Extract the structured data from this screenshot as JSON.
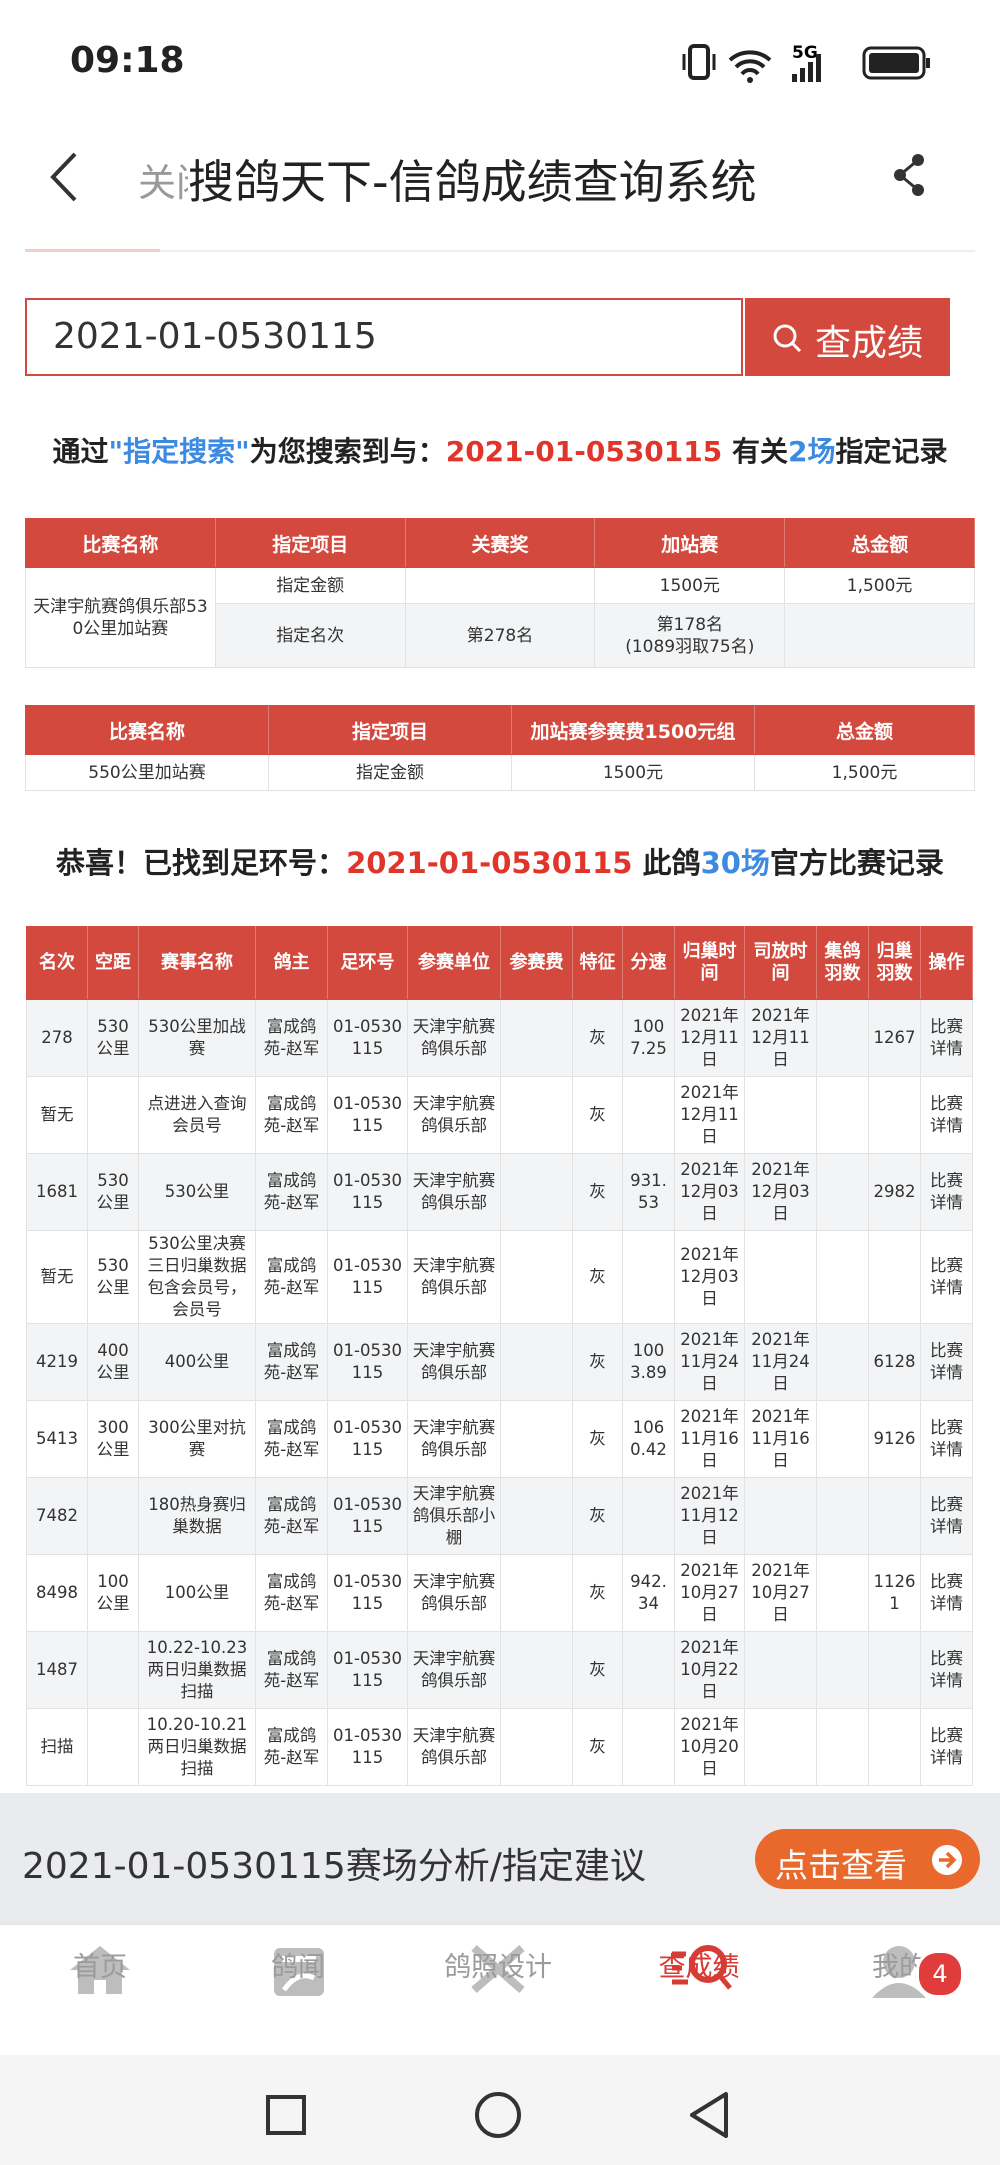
{
  "status": {
    "time": "09:18",
    "network": "5G"
  },
  "header": {
    "close": "关闭",
    "title": "搜鸽天下-信鸽成绩查询系统"
  },
  "search": {
    "value": "2021-01-0530115",
    "button": "查成绩"
  },
  "summary": {
    "prefix": "通过",
    "keyword": "\"指定搜索\"",
    "middle": "为您搜索到与：",
    "ring": "2021-01-0530115",
    "about": " 有关",
    "count": "2场",
    "suffix": "指定记录"
  },
  "table1": {
    "headers": [
      "比赛名称",
      "指定项目",
      "关赛奖",
      "加站赛",
      "总金额"
    ],
    "race": "天津宇航赛鸽俱乐部530公里加站赛",
    "rows": [
      [
        "指定金额",
        null,
        "1500元",
        "1,500元"
      ],
      [
        "指定名次",
        "第278名",
        "第178名\n(1089羽取75名)",
        null
      ]
    ]
  },
  "table2": {
    "headers": [
      "比赛名称",
      "指定项目",
      "加站赛参赛费1500元组",
      "总金额"
    ],
    "rows": [
      [
        "550公里加站赛",
        "指定金额",
        "1500元",
        "1,500元"
      ]
    ]
  },
  "found": {
    "prefix": "恭喜！已找到足环号：",
    "ring": "2021-01-0530115",
    "middle": " 此鸽",
    "count": "30场",
    "suffix": "官方比赛记录"
  },
  "table3": {
    "headers": [
      "名次",
      "空距",
      "赛事名称",
      "鸽主",
      "足环号",
      "参赛单位",
      "参赛费",
      "特征",
      "分速",
      "归巢时间",
      "司放时间",
      "集鸽羽数",
      "归巢羽数",
      "操作"
    ],
    "rows": [
      [
        "278",
        "530公里",
        "530公里加战赛",
        "富成鸽苑-赵军",
        "01-0530115",
        "天津宇航赛鸽俱乐部",
        null,
        "灰",
        "1007.25",
        "2021年12月11日",
        "2021年12月11日",
        null,
        "1267",
        "比赛详情"
      ],
      [
        "暂无",
        null,
        "点进进入查询会员号",
        "富成鸽苑-赵军",
        "01-0530115",
        "天津宇航赛鸽俱乐部",
        null,
        "灰",
        null,
        "2021年12月11日",
        null,
        null,
        null,
        "比赛详情"
      ],
      [
        "1681",
        "530公里",
        "530公里",
        "富成鸽苑-赵军",
        "01-0530115",
        "天津宇航赛鸽俱乐部",
        null,
        "灰",
        "931.53",
        "2021年12月03日",
        "2021年12月03日",
        null,
        "2982",
        "比赛详情"
      ],
      [
        "暂无",
        "530公里",
        "530公里决赛三日归巢数据包含会员号，会员号",
        "富成鸽苑-赵军",
        "01-0530115",
        "天津宇航赛鸽俱乐部",
        null,
        "灰",
        null,
        "2021年12月03日",
        null,
        null,
        null,
        "比赛详情"
      ],
      [
        "4219",
        "400公里",
        "400公里",
        "富成鸽苑-赵军",
        "01-0530115",
        "天津宇航赛鸽俱乐部",
        null,
        "灰",
        "1003.89",
        "2021年11月24日",
        "2021年11月24日",
        null,
        "6128",
        "比赛详情"
      ],
      [
        "5413",
        "300公里",
        "300公里对抗赛",
        "富成鸽苑-赵军",
        "01-0530115",
        "天津宇航赛鸽俱乐部",
        null,
        "灰",
        "1060.42",
        "2021年11月16日",
        "2021年11月16日",
        null,
        "9126",
        "比赛详情"
      ],
      [
        "7482",
        null,
        "180热身赛归巢数据",
        "富成鸽苑-赵军",
        "01-0530115",
        "天津宇航赛鸽俱乐部小棚",
        null,
        "灰",
        null,
        "2021年11月12日",
        null,
        null,
        null,
        "比赛详情"
      ],
      [
        "8498",
        "100公里",
        "100公里",
        "富成鸽苑-赵军",
        "01-0530115",
        "天津宇航赛鸽俱乐部",
        null,
        "灰",
        "942.34",
        "2021年10月27日",
        "2021年10月27日",
        null,
        "11261",
        "比赛详情"
      ],
      [
        "1487",
        null,
        "10.22-10.23两日归巢数据扫描",
        "富成鸽苑-赵军",
        "01-0530115",
        "天津宇航赛鸽俱乐部",
        null,
        "灰",
        null,
        "2021年10月22日",
        null,
        null,
        null,
        "比赛详情"
      ],
      [
        "扫描",
        null,
        "10.20-10.21两日归巢数据扫描",
        "富成鸽苑-赵军",
        "01-0530115",
        "天津宇航赛鸽俱乐部",
        null,
        "灰",
        null,
        "2021年10月20日",
        null,
        null,
        null,
        "比赛详情"
      ]
    ]
  },
  "banner": {
    "text": "2021-01-0530115赛场分析/指定建议",
    "button": "点击查看"
  },
  "tabs": {
    "items": [
      "首页",
      "鸽闻",
      "鸽照设计",
      "查成绩",
      "我的"
    ],
    "badge": "4"
  }
}
